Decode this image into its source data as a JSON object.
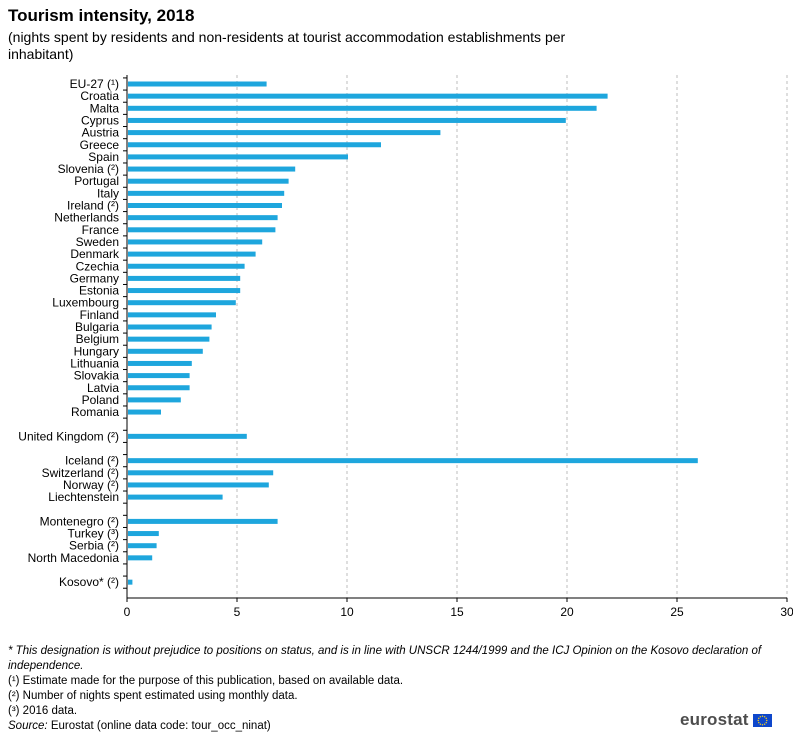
{
  "header": {
    "title": "Tourism intensity, 2018",
    "subtitle": "(nights spent by residents and non-residents at tourist accommodation establishments per inhabitant)"
  },
  "chart_data": {
    "type": "bar",
    "orientation": "horizontal",
    "title": "Tourism intensity, 2018",
    "xlim": [
      0,
      30
    ],
    "xticks": [
      "0",
      "5",
      "10",
      "15",
      "20",
      "25",
      "30"
    ],
    "grid": "vertical-dashed",
    "bar_color": "#1ea6dd",
    "categories": [
      {
        "label": "EU-27 (¹)",
        "value": 6.3
      },
      {
        "label": "Croatia",
        "value": 21.8
      },
      {
        "label": "Malta",
        "value": 21.3
      },
      {
        "label": "Cyprus",
        "value": 19.9
      },
      {
        "label": "Austria",
        "value": 14.2
      },
      {
        "label": "Greece",
        "value": 11.5
      },
      {
        "label": "Spain",
        "value": 10.0
      },
      {
        "label": "Slovenia (²)",
        "value": 7.6
      },
      {
        "label": "Portugal",
        "value": 7.3
      },
      {
        "label": "Italy",
        "value": 7.1
      },
      {
        "label": "Ireland (²)",
        "value": 7.0
      },
      {
        "label": "Netherlands",
        "value": 6.8
      },
      {
        "label": "France",
        "value": 6.7
      },
      {
        "label": "Sweden",
        "value": 6.1
      },
      {
        "label": "Denmark",
        "value": 5.8
      },
      {
        "label": "Czechia",
        "value": 5.3
      },
      {
        "label": "Germany",
        "value": 5.1
      },
      {
        "label": "Estonia",
        "value": 5.1
      },
      {
        "label": "Luxembourg",
        "value": 4.9
      },
      {
        "label": "Finland",
        "value": 4.0
      },
      {
        "label": "Bulgaria",
        "value": 3.8
      },
      {
        "label": "Belgium",
        "value": 3.7
      },
      {
        "label": "Hungary",
        "value": 3.4
      },
      {
        "label": "Lithuania",
        "value": 2.9
      },
      {
        "label": "Slovakia",
        "value": 2.8
      },
      {
        "label": "Latvia",
        "value": 2.8
      },
      {
        "label": "Poland",
        "value": 2.4
      },
      {
        "label": "Romania",
        "value": 1.5
      },
      {
        "label": "",
        "value": null
      },
      {
        "label": "United Kingdom (²)",
        "value": 5.4
      },
      {
        "label": "",
        "value": null
      },
      {
        "label": "Iceland (²)",
        "value": 25.9
      },
      {
        "label": "Switzerland (²)",
        "value": 6.6
      },
      {
        "label": "Norway (²)",
        "value": 6.4
      },
      {
        "label": "Liechtenstein",
        "value": 4.3
      },
      {
        "label": "",
        "value": null
      },
      {
        "label": "Montenegro (²)",
        "value": 6.8
      },
      {
        "label": "Turkey (³)",
        "value": 1.4
      },
      {
        "label": "Serbia (²)",
        "value": 1.3
      },
      {
        "label": "North Macedonia",
        "value": 1.1
      },
      {
        "label": "",
        "value": null
      },
      {
        "label": "Kosovo* (²)",
        "value": 0.2
      }
    ]
  },
  "notes": {
    "dagger": "* This designation is without prejudice to positions on status, and is in line with  UNSCR 1244/1999 and the ICJ Opinion on the Kosovo declaration of independence.",
    "note1": "(¹) Estimate made for the purpose of this publication, based on available data.",
    "note2": "(²) Number of nights spent estimated using monthly data.",
    "note3": "(³) 2016 data.",
    "source_label": "Source:",
    "source_text": " Eurostat (online data code: tour_occ_ninat)"
  },
  "logo": {
    "text": "eurostat",
    "flag_color": "#0e47cb",
    "star_color": "#ffd617"
  }
}
